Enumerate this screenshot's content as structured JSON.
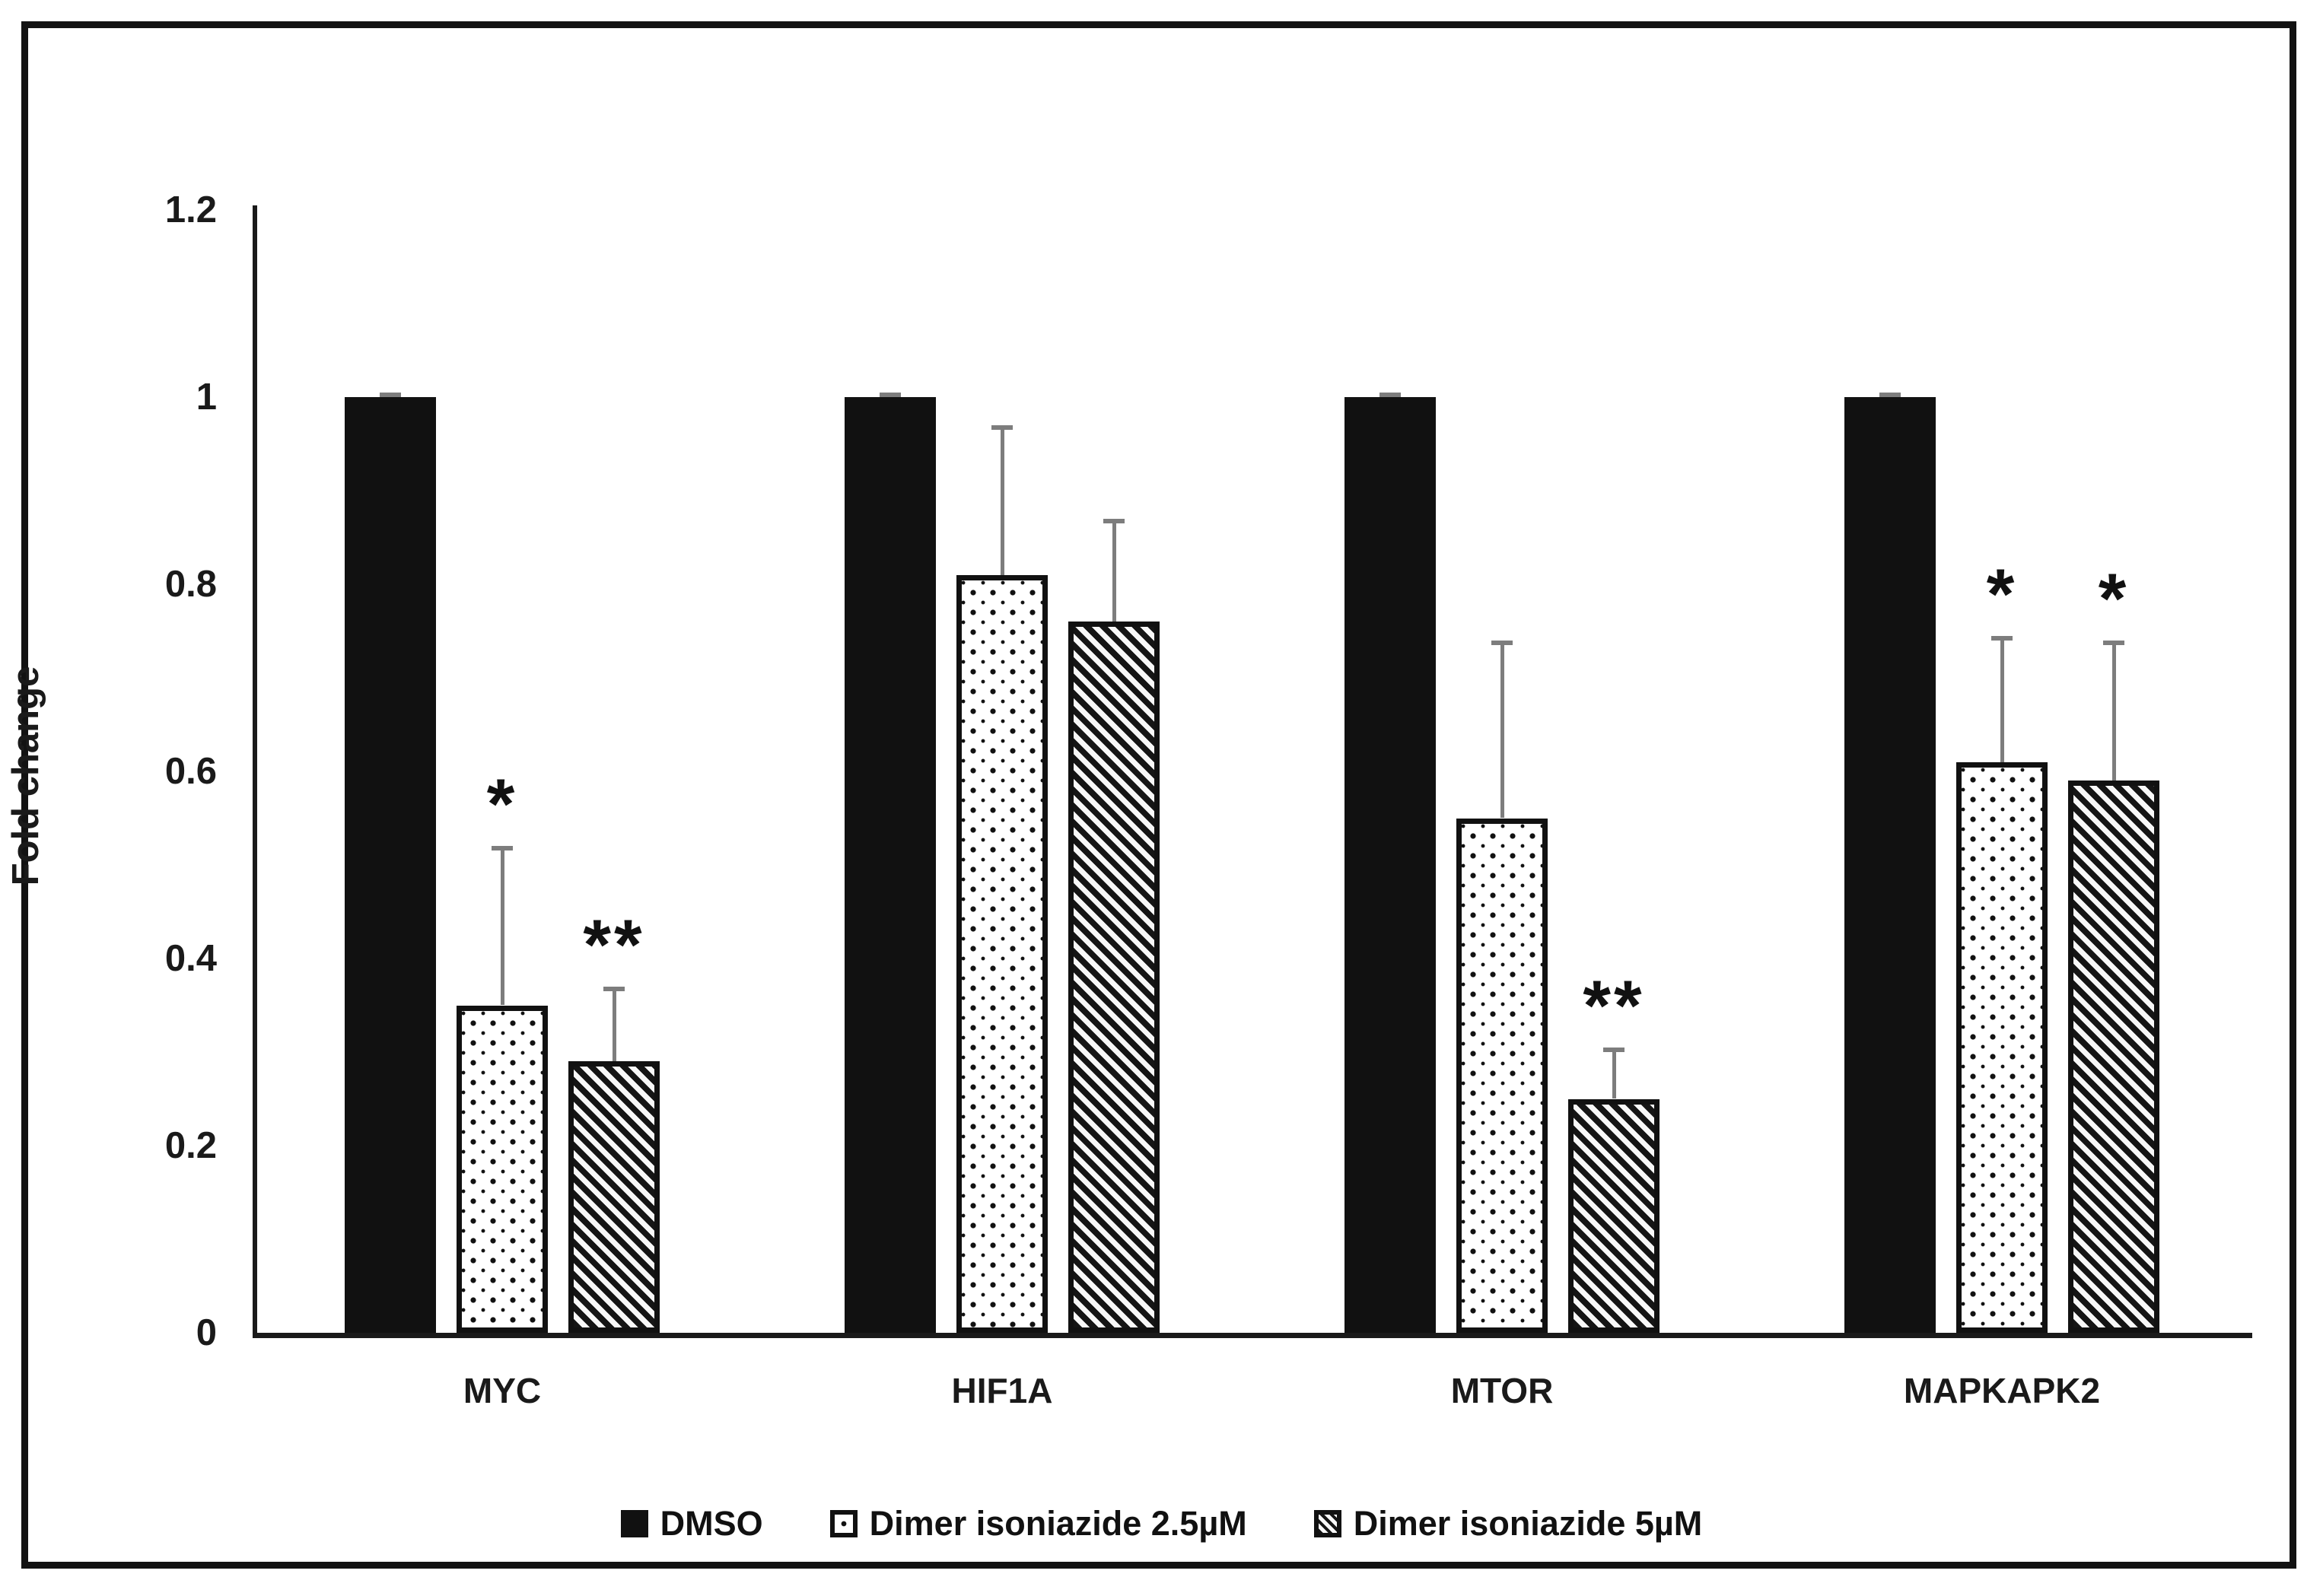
{
  "chart_data": {
    "type": "bar",
    "title": "",
    "xlabel": "",
    "ylabel": "Fold change",
    "ylim": [
      0,
      1.2
    ],
    "grid": false,
    "legend_position": "bottom",
    "bar_outline_color": "#111111",
    "error_bar_color": "#7d7d7d",
    "yticks": [
      {
        "value": 1.2,
        "label": "1.2"
      },
      {
        "value": 1.0,
        "label": "1"
      },
      {
        "value": 0.8,
        "label": "0.8"
      },
      {
        "value": 0.6,
        "label": "0.6"
      },
      {
        "value": 0.4,
        "label": "0.4"
      },
      {
        "value": 0.2,
        "label": "0.2"
      },
      {
        "value": 0.0,
        "label": "0"
      }
    ],
    "categories": [
      "MYC",
      "HIF1A",
      "MTOR",
      "MAPKAPK2"
    ],
    "series": [
      {
        "name": "DMSO",
        "pattern": "solid",
        "values": [
          1.0,
          1.0,
          1.0,
          1.0
        ],
        "errors_plus": [
          0.005,
          0.005,
          0.005,
          0.005
        ],
        "significance": [
          "",
          "",
          "",
          ""
        ]
      },
      {
        "name": "Dimer isoniazide 2.5µM",
        "pattern": "dots",
        "values": [
          0.35,
          0.81,
          0.55,
          0.61
        ],
        "errors_plus": [
          0.17,
          0.16,
          0.19,
          0.135
        ],
        "significance": [
          "*",
          "",
          "",
          "*"
        ]
      },
      {
        "name": "Dimer isoniazide 5µM",
        "pattern": "diagonal-hatch",
        "values": [
          0.29,
          0.76,
          0.25,
          0.59
        ],
        "errors_plus": [
          0.08,
          0.11,
          0.055,
          0.15
        ],
        "significance": [
          "**",
          "",
          "**",
          "*"
        ]
      }
    ]
  }
}
